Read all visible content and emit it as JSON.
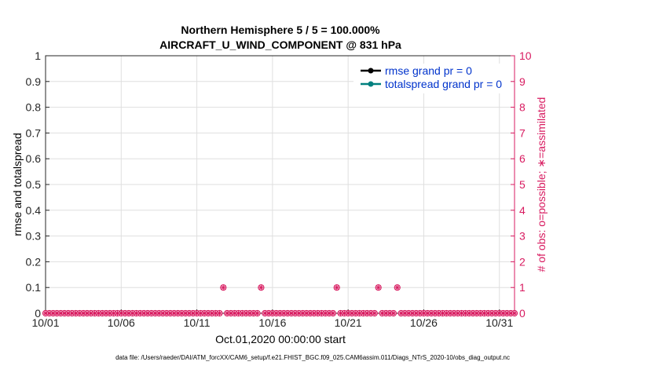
{
  "chart_data": {
    "type": "line",
    "title": "Northern Hemisphere 5 / 5 = 100.000%",
    "subtitle": "AIRCRAFT_U_WIND_COMPONENT @ 831 hPa",
    "xlabel": "Oct.01,2020 00:00:00 start",
    "ylabel": "rmse and totalspread",
    "y2label": "# of obs: o=possible; ∗=assimilated",
    "footer": "data file: /Users/raeder/DAI/ATM_forcXX/CAM6_setup/f.e21.FHIST_BGC.f09_025.CAM6assim.011/Diags_NTrS_2020-10/obs_diag_output.nc",
    "x_tick_labels": [
      "10/01",
      "10/06",
      "10/11",
      "10/16",
      "10/21",
      "10/26",
      "10/31"
    ],
    "x_tick_values": [
      1,
      6,
      11,
      16,
      21,
      26,
      31
    ],
    "xlim": [
      1,
      32
    ],
    "ylim": [
      0,
      1
    ],
    "y_ticks": [
      "0",
      "0.1",
      "0.2",
      "0.3",
      "0.4",
      "0.5",
      "0.6",
      "0.7",
      "0.8",
      "0.9",
      "1"
    ],
    "y2lim": [
      0,
      10
    ],
    "y2_ticks": [
      "0",
      "1",
      "2",
      "3",
      "4",
      "5",
      "6",
      "7",
      "8",
      "9",
      "10"
    ],
    "grid": true,
    "legend_position": "top-right",
    "series": [
      {
        "name": "rmse grand pr = 0",
        "color": "#000000",
        "values": []
      },
      {
        "name": "totalspread grand pr = 0",
        "color": "#00807f",
        "values": []
      }
    ],
    "obs_counts": {
      "color": "#d81b60",
      "bin_step_days": 0.25,
      "nonzero": [
        {
          "day": 12.75,
          "possible": 1,
          "assimilated": 1
        },
        {
          "day": 15.25,
          "possible": 1,
          "assimilated": 1
        },
        {
          "day": 20.25,
          "possible": 1,
          "assimilated": 1
        },
        {
          "day": 23.0,
          "possible": 1,
          "assimilated": 1
        },
        {
          "day": 24.25,
          "possible": 1,
          "assimilated": 1
        }
      ]
    }
  }
}
